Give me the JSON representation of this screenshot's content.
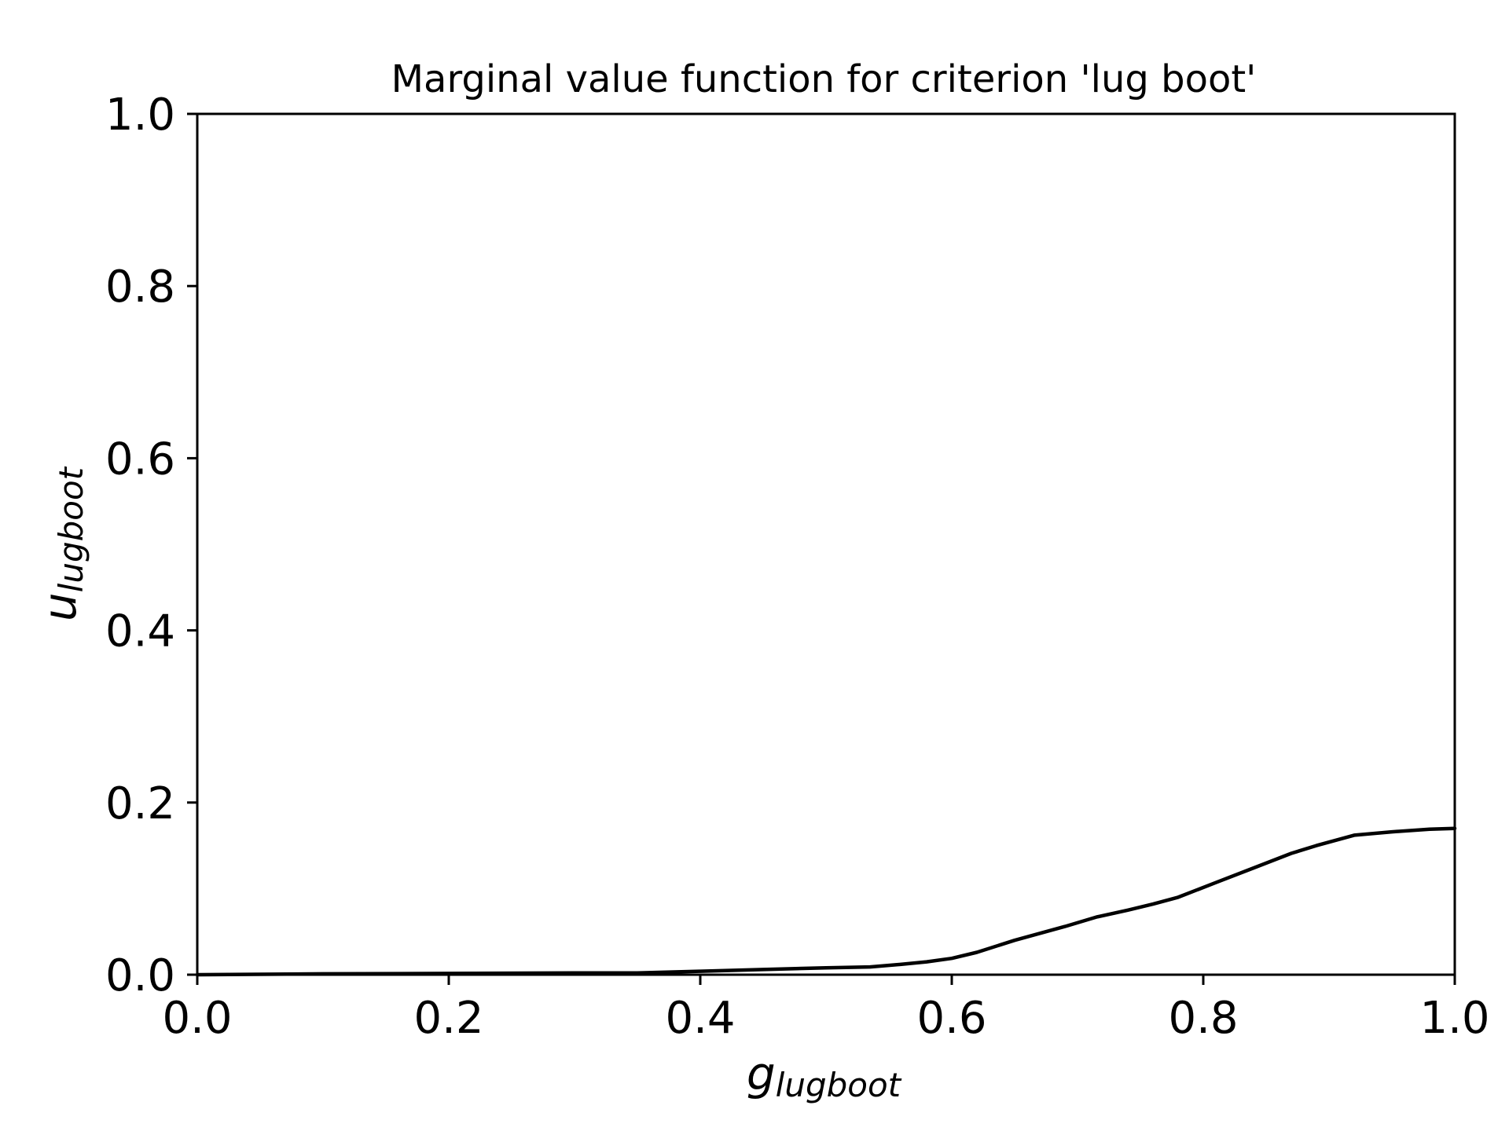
{
  "chart_data": {
    "type": "line",
    "title": "Marginal value function for criterion 'lug boot'",
    "xlabel": {
      "main": "g",
      "sub": "lugboot"
    },
    "ylabel": {
      "main": "u",
      "sub": "lugboot"
    },
    "xlim": [
      0.0,
      1.0
    ],
    "ylim": [
      0.0,
      1.0
    ],
    "xticks": [
      "0.0",
      "0.2",
      "0.4",
      "0.6",
      "0.8",
      "1.0"
    ],
    "yticks": [
      "0.0",
      "0.2",
      "0.4",
      "0.6",
      "0.8",
      "1.0"
    ],
    "grid": false,
    "legend": "none",
    "series": [
      {
        "color": "#000000",
        "x": [
          0.0,
          0.1,
          0.2,
          0.3,
          0.35,
          0.4,
          0.45,
          0.5,
          0.535,
          0.56,
          0.58,
          0.6,
          0.62,
          0.65,
          0.69,
          0.715,
          0.74,
          0.76,
          0.78,
          0.81,
          0.84,
          0.87,
          0.89,
          0.92,
          0.95,
          0.98,
          1.0
        ],
        "y": [
          0.0,
          0.001,
          0.0015,
          0.002,
          0.002,
          0.004,
          0.006,
          0.008,
          0.009,
          0.012,
          0.015,
          0.019,
          0.026,
          0.04,
          0.056,
          0.067,
          0.075,
          0.082,
          0.09,
          0.107,
          0.124,
          0.141,
          0.15,
          0.162,
          0.166,
          0.169,
          0.17
        ]
      }
    ]
  }
}
